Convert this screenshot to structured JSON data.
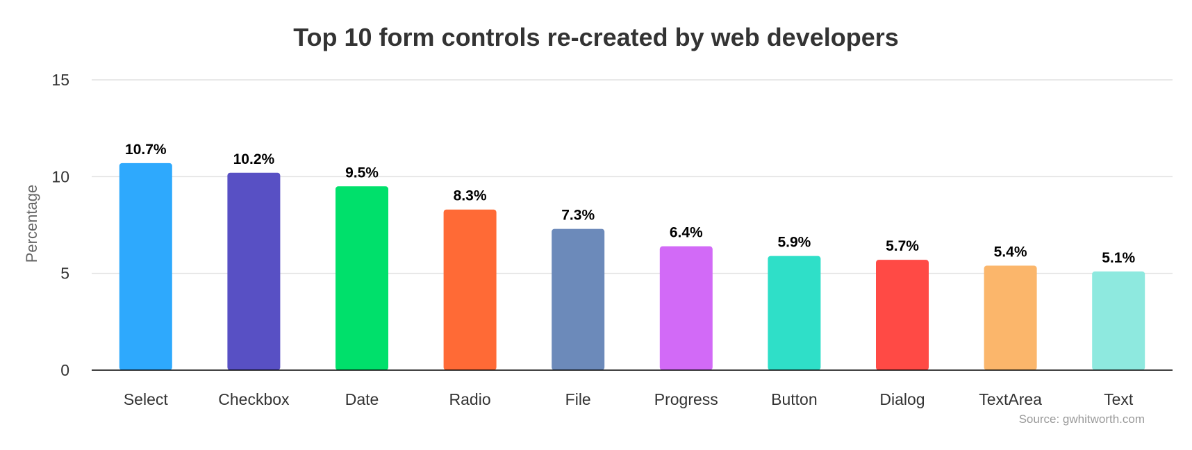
{
  "chart_data": {
    "type": "bar",
    "title": "Top 10 form controls re-created by web developers",
    "ylabel": "Percentage",
    "xlabel": "",
    "ylim": [
      0,
      15
    ],
    "yticks": [
      0,
      5,
      10,
      15
    ],
    "grid": true,
    "legend": "none",
    "categories": [
      "Select",
      "Checkbox",
      "Date",
      "Radio",
      "File",
      "Progress",
      "Button",
      "Dialog",
      "TextArea",
      "Text"
    ],
    "values": [
      10.7,
      10.2,
      9.5,
      8.3,
      7.3,
      6.4,
      5.9,
      5.7,
      5.4,
      5.1
    ],
    "value_labels": [
      "10.7%",
      "10.2%",
      "9.5%",
      "8.3%",
      "7.3%",
      "6.4%",
      "5.9%",
      "5.7%",
      "5.4%",
      "5.1%"
    ],
    "colors": [
      "#2ea9fd",
      "#5850c4",
      "#00e06b",
      "#ff6a36",
      "#6c8aba",
      "#d26af7",
      "#2fdfc8",
      "#ff4a45",
      "#fbb66b",
      "#8ee9df"
    ],
    "source": "Source: gwhitworth.com"
  }
}
